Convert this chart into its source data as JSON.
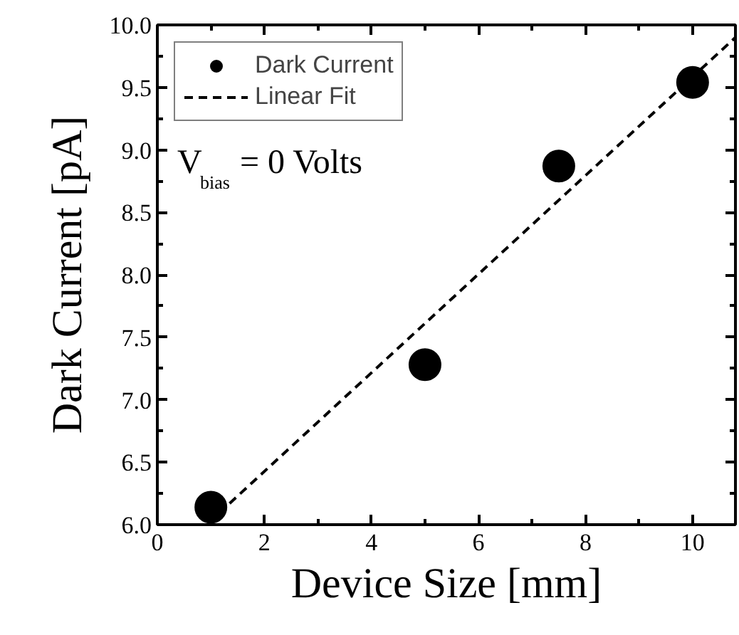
{
  "chart_data": {
    "type": "scatter",
    "xlabel": "Device Size [mm]",
    "ylabel": "Dark Current [pA]",
    "xlim": [
      0,
      10.8
    ],
    "ylim": [
      6.0,
      10.0
    ],
    "xticks": [
      0,
      2,
      4,
      6,
      8,
      10
    ],
    "yticks": [
      {
        "value": 6.0,
        "label": "6.0"
      },
      {
        "value": 6.5,
        "label": "6.5"
      },
      {
        "value": 7.0,
        "label": "7.0"
      },
      {
        "value": 7.5,
        "label": "7.5"
      },
      {
        "value": 8.0,
        "label": "8.0"
      },
      {
        "value": 8.5,
        "label": "8.5"
      },
      {
        "value": 9.0,
        "label": "9.0"
      },
      {
        "value": 9.5,
        "label": "9.5"
      },
      {
        "value": 10.0,
        "label": "10.0"
      }
    ],
    "series": [
      {
        "name": "Dark Current",
        "color": "#000000",
        "marker": "circle",
        "x": [
          1,
          5,
          7.5,
          10
        ],
        "values": [
          6.14,
          7.28,
          8.87,
          9.54
        ]
      },
      {
        "name": "Linear Fit",
        "type": "line",
        "color": "#000000",
        "line_style": "dashed",
        "x": [
          1.35,
          10.8
        ],
        "values": [
          6.17,
          9.9
        ]
      }
    ],
    "annotations": [
      "V$_{bias}$ = 0 Volts"
    ],
    "legend": "top left",
    "grid": false
  }
}
